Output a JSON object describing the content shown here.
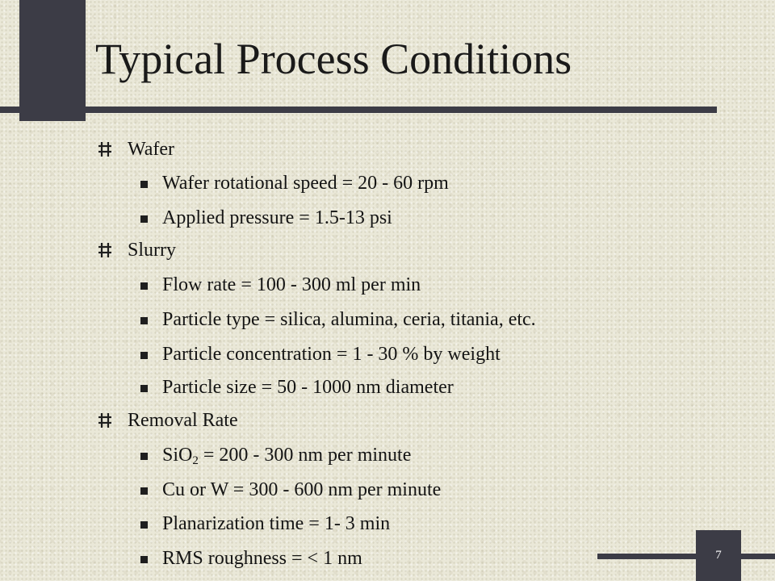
{
  "slide": {
    "title": "Typical Process Conditions",
    "page_number": "7"
  },
  "sections": [
    {
      "heading": "Wafer",
      "items": [
        {
          "text": "Wafer rotational speed = 20 - 60 rpm"
        },
        {
          "text": "Applied pressure = 1.5-13 psi"
        }
      ]
    },
    {
      "heading": "Slurry",
      "items": [
        {
          "text": "Flow rate = 100 - 300 ml per min"
        },
        {
          "text": "Particle type = silica, alumina, ceria, titania, etc."
        },
        {
          "text": "Particle concentration = 1 - 30 % by weight"
        },
        {
          "text": "Particle size = 50 - 1000 nm diameter"
        }
      ]
    },
    {
      "heading": "Removal Rate",
      "items": [
        {
          "prefix": "SiO",
          "subscript": "2",
          "suffix": " = 200 - 300 nm per minute"
        },
        {
          "text": "Cu or W = 300 - 600 nm per minute"
        },
        {
          "text": "Planarization time = 1- 3 min"
        },
        {
          "text": "RMS roughness = < 1 nm"
        }
      ]
    }
  ],
  "colors": {
    "background": "#eae8d8",
    "accent_bars": "#3c3c46",
    "text": "#141414"
  },
  "icons": {
    "level1_bullet": "hash-bullet-icon",
    "level2_bullet": "square-bullet-icon"
  }
}
